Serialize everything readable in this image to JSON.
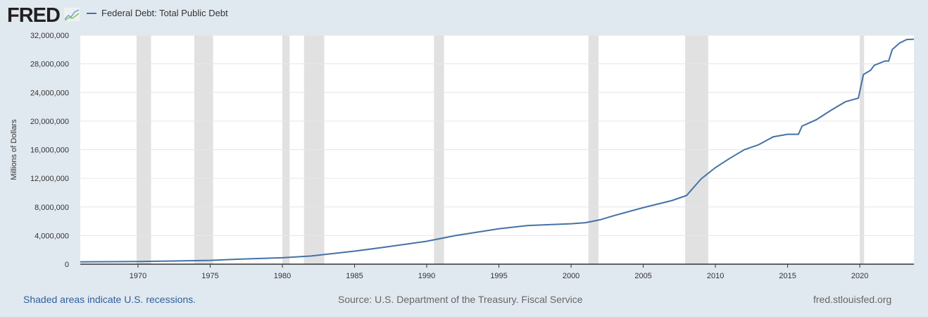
{
  "header": {
    "logo": "FRED",
    "series_label": "Federal Debt: Total Public Debt"
  },
  "footer": {
    "recession_note": "Shaded areas indicate U.S. recessions.",
    "source": "Source: U.S. Department of the Treasury. Fiscal Service",
    "site": "fred.stlouisfed.org"
  },
  "colors": {
    "line": "#4572a7",
    "recession": "#e1e1e1",
    "background": "#e1e9f0"
  },
  "chart_data": {
    "type": "line",
    "title": "",
    "ylabel": "Millions of Dollars",
    "xlim": [
      1966,
      2023.75
    ],
    "ylim": [
      0,
      32000000
    ],
    "grid": true,
    "legend": "top-left",
    "xticks": [
      1970,
      1975,
      1980,
      1985,
      1990,
      1995,
      2000,
      2005,
      2010,
      2015,
      2020
    ],
    "yticks": [
      0,
      4000000,
      8000000,
      12000000,
      16000000,
      20000000,
      24000000,
      28000000,
      32000000
    ],
    "ytick_labels": [
      "0",
      "4,000,000",
      "8,000,000",
      "12,000,000",
      "16,000,000",
      "20,000,000",
      "24,000,000",
      "28,000,000",
      "32,000,000"
    ],
    "recessions": [
      [
        1969.9,
        1970.9
      ],
      [
        1973.9,
        1975.2
      ],
      [
        1980.0,
        1980.5
      ],
      [
        1981.5,
        1982.9
      ],
      [
        1990.5,
        1991.2
      ],
      [
        2001.2,
        2001.9
      ],
      [
        2007.9,
        2009.5
      ],
      [
        2020.0,
        2020.3
      ]
    ],
    "series": [
      {
        "name": "Federal Debt: Total Public Debt",
        "x": [
          1966,
          1968,
          1970,
          1972,
          1975,
          1977,
          1980,
          1982,
          1985,
          1987,
          1990,
          1992,
          1995,
          1997,
          2000,
          2001,
          2002,
          2003,
          2005,
          2007,
          2008,
          2009,
          2010,
          2011,
          2012,
          2013,
          2014,
          2015,
          2015.75,
          2016,
          2017,
          2018,
          2019,
          2019.9,
          2020.25,
          2020.75,
          2021,
          2021.75,
          2022,
          2022.25,
          2022.75,
          2023.25,
          2023.75
        ],
        "y": [
          320000,
          350000,
          370000,
          430000,
          530000,
          700000,
          900000,
          1150000,
          1820000,
          2350000,
          3200000,
          4000000,
          4950000,
          5400000,
          5650000,
          5800000,
          6200000,
          6800000,
          7900000,
          8900000,
          9600000,
          11900000,
          13500000,
          14800000,
          16000000,
          16700000,
          17800000,
          18150000,
          18150000,
          19300000,
          20200000,
          21500000,
          22700000,
          23200000,
          26500000,
          27100000,
          27800000,
          28400000,
          28400000,
          30000000,
          30900000,
          31400000,
          31450000
        ]
      }
    ]
  }
}
